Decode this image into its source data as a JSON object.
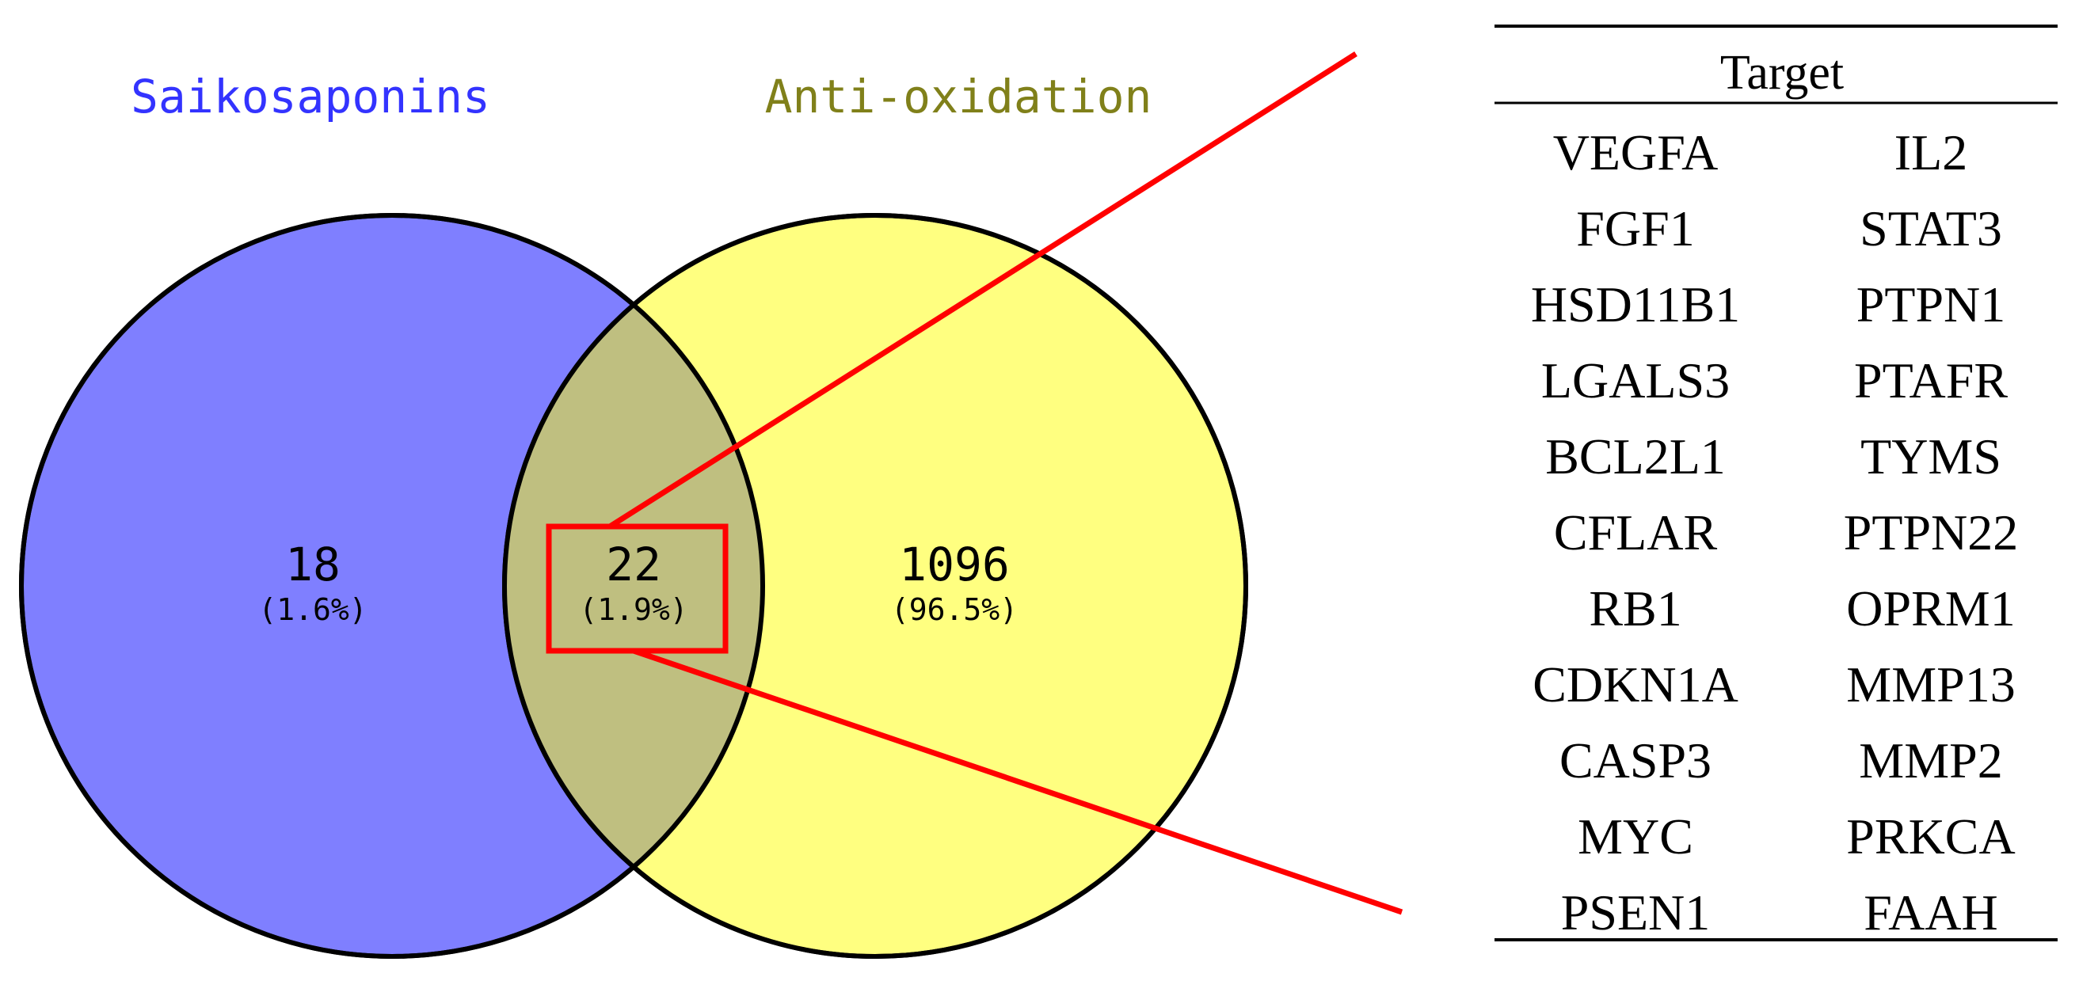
{
  "venn": {
    "set_a": {
      "label": "Saikosaponins",
      "color": "#7f7fff",
      "label_color": "#3333ff",
      "count": "18",
      "percent": "(1.6%)"
    },
    "set_b": {
      "label": "Anti-oxidation",
      "color": "#ffff80",
      "label_color": "#80801a",
      "count": "1096",
      "percent": "(96.5%)"
    },
    "overlap": {
      "color": "#bfbf80",
      "count": "22",
      "percent": "(1.9%)"
    },
    "highlight_color": "#ff0000"
  },
  "target_table": {
    "header": "Target",
    "rows": [
      [
        "VEGFA",
        "IL2"
      ],
      [
        "FGF1",
        "STAT3"
      ],
      [
        "HSD11B1",
        "PTPN1"
      ],
      [
        "LGALS3",
        "PTAFR"
      ],
      [
        "BCL2L1",
        "TYMS"
      ],
      [
        "CFLAR",
        "PTPN22"
      ],
      [
        "RB1",
        "OPRM1"
      ],
      [
        "CDKN1A",
        "MMP13"
      ],
      [
        "CASP3",
        "MMP2"
      ],
      [
        "MYC",
        "PRKCA"
      ],
      [
        "PSEN1",
        "FAAH"
      ]
    ]
  }
}
